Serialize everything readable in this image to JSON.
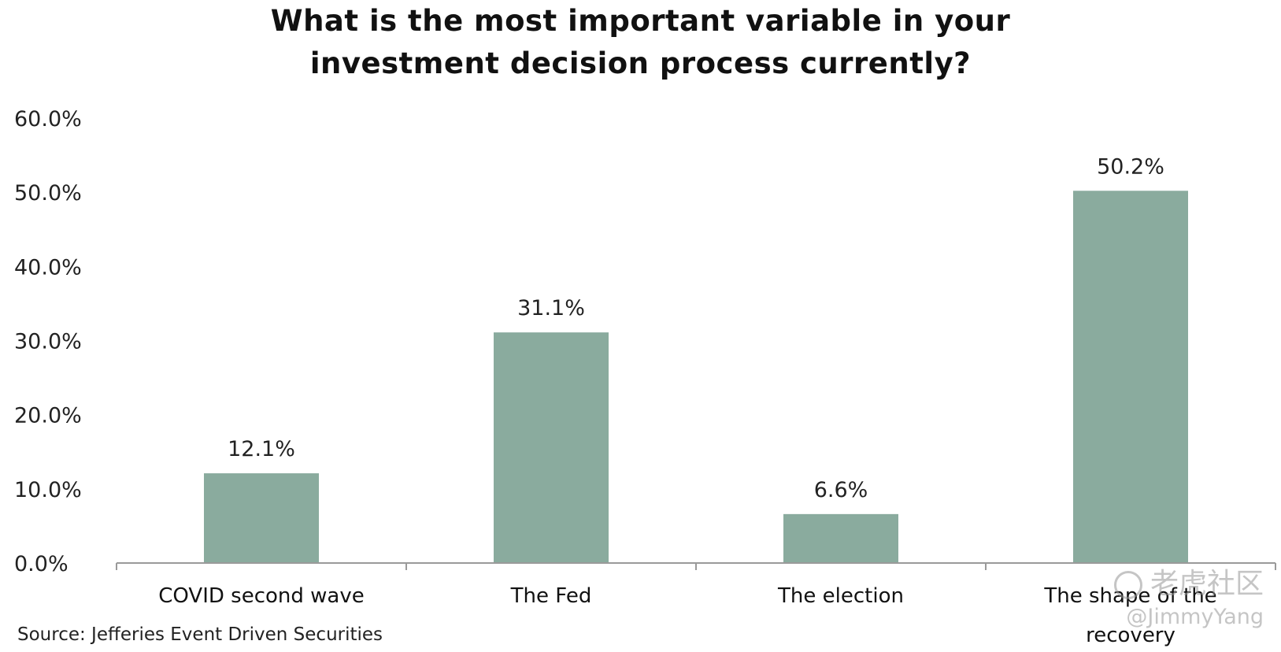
{
  "chart_data": {
    "type": "bar",
    "title_lines": [
      "What is the most important variable in your",
      "investment decision process currently?"
    ],
    "categories": [
      [
        "COVID second wave"
      ],
      [
        "The Fed"
      ],
      [
        "The election"
      ],
      [
        "The shape of the",
        "recovery"
      ]
    ],
    "values": [
      12.1,
      31.1,
      6.6,
      50.2
    ],
    "value_labels": [
      "12.1%",
      "31.1%",
      "6.6%",
      "50.2%"
    ],
    "yticks": [
      "0.0%",
      "10.0%",
      "20.0%",
      "30.0%",
      "40.0%",
      "50.0%",
      "60.0%"
    ],
    "ylim": [
      0,
      60
    ],
    "bar_color": "#8aab9e",
    "axis_color": "#9a9a9a",
    "grid": false,
    "legend": "none"
  },
  "source": "Source: Jefferies Event Driven Securities",
  "watermark": {
    "brand": "老虎社区",
    "user": "@JimmyYang"
  }
}
